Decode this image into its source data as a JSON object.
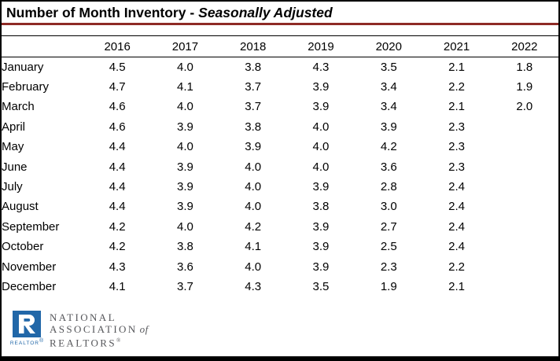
{
  "colors": {
    "page_bg": "#ffffff",
    "border": "#000000",
    "title_underline": "#8e2a25",
    "logo_blue": "#2167a8",
    "logo_gray": "#55565a",
    "text": "#000000"
  },
  "title": {
    "main": "Number of Month Inventory -",
    "emphasis": "Seasonally Adjusted"
  },
  "chart_data": {
    "type": "table",
    "title": "Number of Month Inventory - Seasonally Adjusted",
    "row_labels": [
      "January",
      "February",
      "March",
      "April",
      "May",
      "June",
      "July",
      "August",
      "September",
      "October",
      "November",
      "December"
    ],
    "columns": [
      "2016",
      "2017",
      "2018",
      "2019",
      "2020",
      "2021",
      "2022"
    ],
    "series": [
      {
        "name": "2016",
        "values": [
          4.5,
          4.7,
          4.6,
          4.6,
          4.4,
          4.4,
          4.4,
          4.4,
          4.2,
          4.2,
          4.3,
          4.1
        ]
      },
      {
        "name": "2017",
        "values": [
          4.0,
          4.1,
          4.0,
          3.9,
          4.0,
          3.9,
          3.9,
          3.9,
          4.0,
          3.8,
          3.6,
          3.7
        ]
      },
      {
        "name": "2018",
        "values": [
          3.8,
          3.7,
          3.7,
          3.8,
          3.9,
          4.0,
          4.0,
          4.0,
          4.2,
          4.1,
          4.0,
          4.3
        ]
      },
      {
        "name": "2019",
        "values": [
          4.3,
          3.9,
          3.9,
          4.0,
          4.0,
          4.0,
          3.9,
          3.8,
          3.9,
          3.9,
          3.9,
          3.5
        ]
      },
      {
        "name": "2020",
        "values": [
          3.5,
          3.4,
          3.4,
          3.9,
          4.2,
          3.6,
          2.8,
          3.0,
          2.7,
          2.5,
          2.3,
          1.9
        ]
      },
      {
        "name": "2021",
        "values": [
          2.1,
          2.2,
          2.1,
          2.3,
          2.3,
          2.3,
          2.4,
          2.4,
          2.4,
          2.4,
          2.2,
          2.1
        ]
      },
      {
        "name": "2022",
        "values": [
          1.8,
          1.9,
          2.0,
          null,
          null,
          null,
          null,
          null,
          null,
          null,
          null,
          null
        ]
      }
    ],
    "value_format": "0.0"
  },
  "logo": {
    "banner": "REALTOR",
    "line1": "NATIONAL",
    "line2": "ASSOCIATION",
    "line2_suffix": "of",
    "line3": "REALTORS",
    "registered": "®"
  }
}
